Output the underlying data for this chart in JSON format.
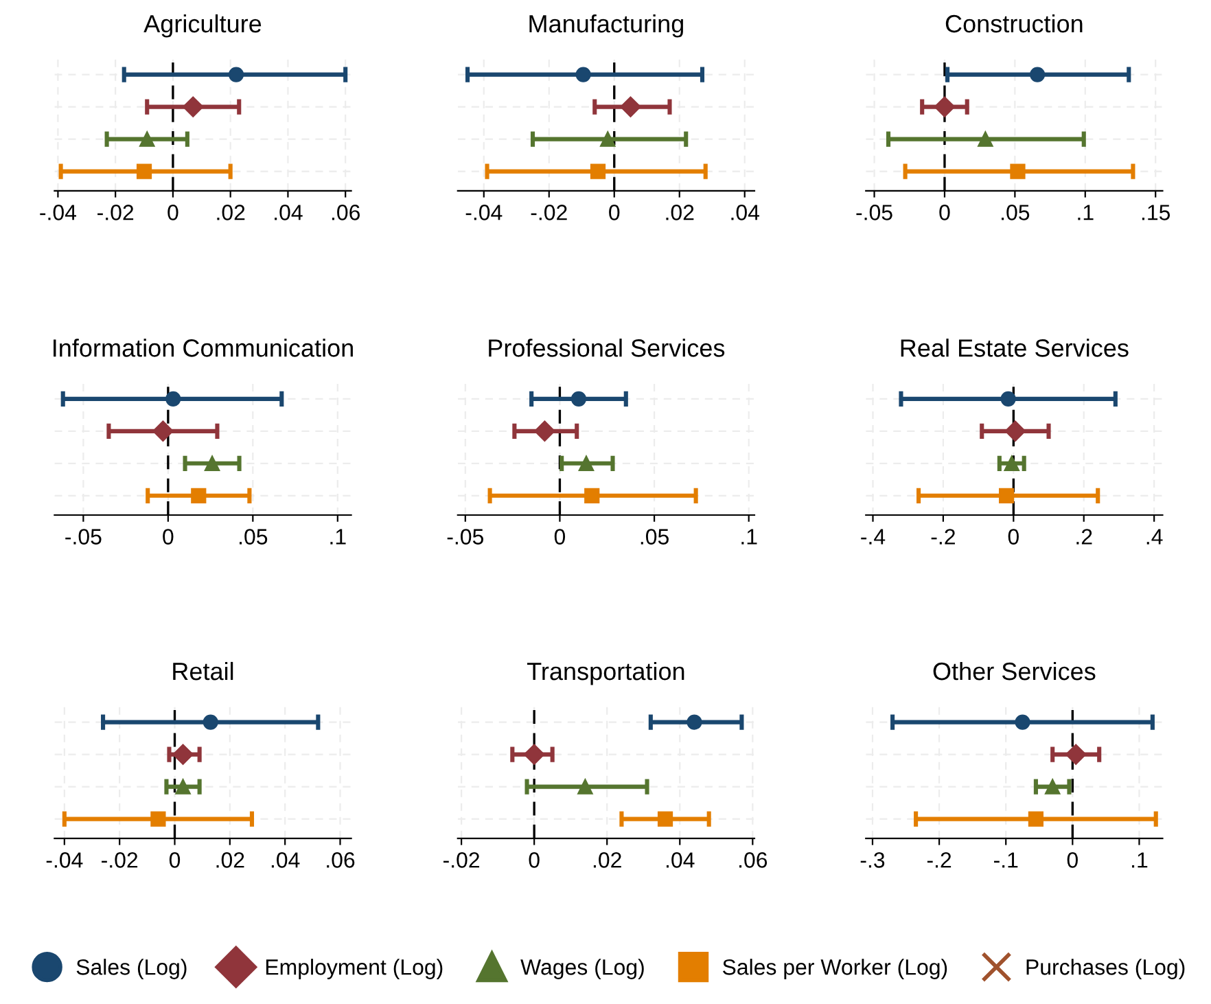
{
  "chart_data": [
    {
      "type": "scatter",
      "orientation": "horizontal",
      "title": "Agriculture",
      "categories": [
        null,
        null,
        null,
        null
      ],
      "grid": true,
      "tick_labels": "x",
      "legend": "bottom",
      "xlim": [
        -0.0412,
        0.062
      ],
      "xticks": [
        {
          "value": -0.04,
          "label": "-.04"
        },
        {
          "value": -0.02,
          "label": "-.02"
        },
        0,
        {
          "value": 0.02,
          "label": ".02"
        },
        {
          "value": 0.04,
          "label": ".04"
        },
        {
          "value": 0.06,
          "label": ".06"
        }
      ],
      "ref_lines": [
        {
          "axis": "x",
          "value": 0,
          "color": "#000000",
          "line_style": "dashed"
        }
      ],
      "series": [
        {
          "name": "Sales (Log)",
          "color": "#1a476f",
          "marker": "circle",
          "values": [
            0.022,
            null,
            null,
            null
          ],
          "errors": [
            [
              -0.017,
              0.06
            ],
            null,
            null,
            null
          ]
        },
        {
          "name": "Employment (Log)",
          "color": "#90353b",
          "marker": "diamond",
          "values": [
            null,
            0.007,
            null,
            null
          ],
          "errors": [
            null,
            [
              -0.009,
              0.023
            ],
            null,
            null
          ]
        },
        {
          "name": "Wages (Log)",
          "color": "#55752f",
          "marker": "triangle",
          "values": [
            null,
            null,
            -0.009,
            null
          ],
          "errors": [
            null,
            null,
            [
              -0.023,
              0.005
            ],
            null
          ]
        },
        {
          "name": "Sales per Worker (Log)",
          "color": "#e37e00",
          "marker": "square",
          "values": [
            null,
            null,
            null,
            -0.01
          ],
          "errors": [
            null,
            null,
            null,
            [
              -0.039,
              0.02
            ]
          ]
        },
        {
          "name": "Purchases (Log)",
          "color": "#a0522d",
          "marker": "cross",
          "values": [
            null,
            null,
            null,
            null
          ]
        }
      ]
    },
    {
      "type": "scatter",
      "orientation": "horizontal",
      "title": "Manufacturing",
      "categories": [
        null,
        null,
        null,
        null
      ],
      "grid": true,
      "tick_labels": "x",
      "xlim": [
        -0.048,
        0.043
      ],
      "xticks": [
        {
          "value": -0.04,
          "label": "-.04"
        },
        {
          "value": -0.02,
          "label": "-.02"
        },
        0,
        {
          "value": 0.02,
          "label": ".02"
        },
        {
          "value": 0.04,
          "label": ".04"
        }
      ],
      "ref_lines": [
        {
          "axis": "x",
          "value": 0,
          "color": "#000000",
          "line_style": "dashed"
        }
      ],
      "series": [
        {
          "color": "#1a476f",
          "marker": "circle",
          "values": [
            -0.0095,
            null,
            null,
            null
          ],
          "errors": [
            [
              -0.045,
              0.027
            ],
            null,
            null,
            null
          ]
        },
        {
          "color": "#90353b",
          "marker": "diamond",
          "values": [
            null,
            0.005,
            null,
            null
          ],
          "errors": [
            null,
            [
              -0.006,
              0.017
            ],
            null,
            null
          ]
        },
        {
          "color": "#55752f",
          "marker": "triangle",
          "values": [
            null,
            null,
            -0.002,
            null
          ],
          "errors": [
            null,
            null,
            [
              -0.025,
              0.022
            ],
            null
          ]
        },
        {
          "color": "#e37e00",
          "marker": "square",
          "values": [
            null,
            null,
            null,
            -0.005
          ],
          "errors": [
            null,
            null,
            null,
            [
              -0.039,
              0.028
            ]
          ]
        }
      ]
    },
    {
      "type": "scatter",
      "orientation": "horizontal",
      "title": "Construction",
      "categories": [
        null,
        null,
        null,
        null
      ],
      "grid": true,
      "tick_labels": "x",
      "xlim": [
        -0.056,
        0.155
      ],
      "xticks": [
        {
          "value": -0.05,
          "label": "-.05"
        },
        0,
        {
          "value": 0.05,
          "label": ".05"
        },
        {
          "value": 0.1,
          "label": ".1"
        },
        {
          "value": 0.15,
          "label": ".15"
        }
      ],
      "ref_lines": [
        {
          "axis": "x",
          "value": 0,
          "color": "#000000",
          "line_style": "dashed"
        }
      ],
      "series": [
        {
          "color": "#1a476f",
          "marker": "circle",
          "values": [
            0.066,
            null,
            null,
            null
          ],
          "errors": [
            [
              0.002,
              0.131
            ],
            null,
            null,
            null
          ]
        },
        {
          "color": "#90353b",
          "marker": "diamond",
          "values": [
            null,
            0.0,
            null,
            null
          ],
          "errors": [
            null,
            [
              -0.016,
              0.016
            ],
            null,
            null
          ]
        },
        {
          "color": "#55752f",
          "marker": "triangle",
          "values": [
            null,
            null,
            0.029,
            null
          ],
          "errors": [
            null,
            null,
            [
              -0.04,
              0.099
            ],
            null
          ]
        },
        {
          "color": "#e37e00",
          "marker": "square",
          "values": [
            null,
            null,
            null,
            0.052
          ],
          "errors": [
            null,
            null,
            null,
            [
              -0.028,
              0.134
            ]
          ]
        }
      ]
    },
    {
      "type": "scatter",
      "orientation": "horizontal",
      "title": "Information Communication",
      "categories": [
        null,
        null,
        null,
        null
      ],
      "grid": true,
      "tick_labels": "x",
      "xlim": [
        -0.067,
        0.108
      ],
      "xticks": [
        {
          "value": -0.05,
          "label": "-.05"
        },
        0,
        {
          "value": 0.05,
          "label": ".05"
        },
        {
          "value": 0.1,
          "label": ".1"
        }
      ],
      "ref_lines": [
        {
          "axis": "x",
          "value": 0,
          "color": "#000000",
          "line_style": "dashed"
        }
      ],
      "series": [
        {
          "color": "#1a476f",
          "marker": "circle",
          "values": [
            0.003,
            null,
            null,
            null
          ],
          "errors": [
            [
              -0.062,
              0.067
            ],
            null,
            null,
            null
          ]
        },
        {
          "color": "#90353b",
          "marker": "diamond",
          "values": [
            null,
            -0.003,
            null,
            null
          ],
          "errors": [
            null,
            [
              -0.035,
              0.029
            ],
            null,
            null
          ]
        },
        {
          "color": "#55752f",
          "marker": "triangle",
          "values": [
            null,
            null,
            0.026,
            null
          ],
          "errors": [
            null,
            null,
            [
              0.01,
              0.042
            ],
            null
          ]
        },
        {
          "color": "#e37e00",
          "marker": "square",
          "values": [
            null,
            null,
            null,
            0.018
          ],
          "errors": [
            null,
            null,
            null,
            [
              -0.012,
              0.048
            ]
          ]
        }
      ]
    },
    {
      "type": "scatter",
      "orientation": "horizontal",
      "title": "Professional Services",
      "categories": [
        null,
        null,
        null,
        null
      ],
      "grid": true,
      "tick_labels": "x",
      "xlim": [
        -0.054,
        0.103
      ],
      "xticks": [
        {
          "value": -0.05,
          "label": "-.05"
        },
        0,
        {
          "value": 0.05,
          "label": ".05"
        },
        {
          "value": 0.1,
          "label": ".1"
        }
      ],
      "ref_lines": [
        {
          "axis": "x",
          "value": 0,
          "color": "#000000",
          "line_style": "dashed"
        }
      ],
      "series": [
        {
          "color": "#1a476f",
          "marker": "circle",
          "values": [
            0.01,
            null,
            null,
            null
          ],
          "errors": [
            [
              -0.015,
              0.035
            ],
            null,
            null,
            null
          ]
        },
        {
          "color": "#90353b",
          "marker": "diamond",
          "values": [
            null,
            -0.008,
            null,
            null
          ],
          "errors": [
            null,
            [
              -0.024,
              0.009
            ],
            null,
            null
          ]
        },
        {
          "color": "#55752f",
          "marker": "triangle",
          "values": [
            null,
            null,
            0.014,
            null
          ],
          "errors": [
            null,
            null,
            [
              0.001,
              0.028
            ],
            null
          ]
        },
        {
          "color": "#e37e00",
          "marker": "square",
          "values": [
            null,
            null,
            null,
            0.017
          ],
          "errors": [
            null,
            null,
            null,
            [
              -0.037,
              0.072
            ]
          ]
        }
      ]
    },
    {
      "type": "scatter",
      "orientation": "horizontal",
      "title": "Real Estate Services",
      "categories": [
        null,
        null,
        null,
        null
      ],
      "grid": true,
      "tick_labels": "x",
      "xlim": [
        -0.42,
        0.424
      ],
      "xticks": [
        {
          "value": -0.4,
          "label": "-.4"
        },
        {
          "value": -0.2,
          "label": "-.2"
        },
        0,
        {
          "value": 0.2,
          "label": ".2"
        },
        {
          "value": 0.4,
          "label": ".4"
        }
      ],
      "ref_lines": [
        {
          "axis": "x",
          "value": 0,
          "color": "#000000",
          "line_style": "dashed"
        }
      ],
      "series": [
        {
          "color": "#1a476f",
          "marker": "circle",
          "values": [
            -0.015,
            null,
            null,
            null
          ],
          "errors": [
            [
              -0.32,
              0.29
            ],
            null,
            null,
            null
          ]
        },
        {
          "color": "#90353b",
          "marker": "diamond",
          "values": [
            null,
            0.005,
            null,
            null
          ],
          "errors": [
            null,
            [
              -0.09,
              0.1
            ],
            null,
            null
          ]
        },
        {
          "color": "#55752f",
          "marker": "triangle",
          "values": [
            null,
            null,
            -0.005,
            null
          ],
          "errors": [
            null,
            null,
            [
              -0.04,
              0.03
            ],
            null
          ]
        },
        {
          "color": "#e37e00",
          "marker": "square",
          "values": [
            null,
            null,
            null,
            -0.02
          ],
          "errors": [
            null,
            null,
            null,
            [
              -0.27,
              0.24
            ]
          ]
        }
      ]
    },
    {
      "type": "scatter",
      "orientation": "horizontal",
      "title": "Retail",
      "categories": [
        null,
        null,
        null,
        null
      ],
      "grid": true,
      "tick_labels": "x",
      "xlim": [
        -0.0436,
        0.064
      ],
      "xticks": [
        {
          "value": -0.04,
          "label": "-.04"
        },
        {
          "value": -0.02,
          "label": "-.02"
        },
        0,
        {
          "value": 0.02,
          "label": ".02"
        },
        {
          "value": 0.04,
          "label": ".04"
        },
        {
          "value": 0.06,
          "label": ".06"
        }
      ],
      "ref_lines": [
        {
          "axis": "x",
          "value": 0,
          "color": "#000000",
          "line_style": "dashed"
        }
      ],
      "series": [
        {
          "color": "#1a476f",
          "marker": "circle",
          "values": [
            0.013,
            null,
            null,
            null
          ],
          "errors": [
            [
              -0.026,
              0.052
            ],
            null,
            null,
            null
          ]
        },
        {
          "color": "#90353b",
          "marker": "diamond",
          "values": [
            null,
            0.003,
            null,
            null
          ],
          "errors": [
            null,
            [
              -0.002,
              0.009
            ],
            null,
            null
          ]
        },
        {
          "color": "#55752f",
          "marker": "triangle",
          "values": [
            null,
            null,
            0.003,
            null
          ],
          "errors": [
            null,
            null,
            [
              -0.003,
              0.009
            ],
            null
          ]
        },
        {
          "color": "#e37e00",
          "marker": "square",
          "values": [
            null,
            null,
            null,
            -0.006
          ],
          "errors": [
            null,
            null,
            null,
            [
              -0.04,
              0.028
            ]
          ]
        }
      ]
    },
    {
      "type": "scatter",
      "orientation": "horizontal",
      "title": "Transportation",
      "categories": [
        null,
        null,
        null,
        null
      ],
      "grid": true,
      "tick_labels": "x",
      "xlim": [
        -0.021,
        0.0605
      ],
      "xticks": [
        {
          "value": -0.02,
          "label": "-.02"
        },
        0,
        {
          "value": 0.02,
          "label": ".02"
        },
        {
          "value": 0.04,
          "label": ".04"
        },
        {
          "value": 0.06,
          "label": ".06"
        }
      ],
      "ref_lines": [
        {
          "axis": "x",
          "value": 0,
          "color": "#000000",
          "line_style": "dashed"
        }
      ],
      "series": [
        {
          "color": "#1a476f",
          "marker": "circle",
          "values": [
            0.044,
            null,
            null,
            null
          ],
          "errors": [
            [
              0.032,
              0.057
            ],
            null,
            null,
            null
          ]
        },
        {
          "color": "#90353b",
          "marker": "diamond",
          "values": [
            null,
            0.0,
            null,
            null
          ],
          "errors": [
            null,
            [
              -0.006,
              0.005
            ],
            null,
            null
          ]
        },
        {
          "color": "#55752f",
          "marker": "triangle",
          "values": [
            null,
            null,
            0.014,
            null
          ],
          "errors": [
            null,
            null,
            [
              -0.002,
              0.031
            ],
            null
          ]
        },
        {
          "color": "#e37e00",
          "marker": "square",
          "values": [
            null,
            null,
            null,
            0.036
          ],
          "errors": [
            null,
            null,
            null,
            [
              0.024,
              0.048
            ]
          ]
        }
      ]
    },
    {
      "type": "scatter",
      "orientation": "horizontal",
      "title": "Other Services",
      "categories": [
        null,
        null,
        null,
        null
      ],
      "grid": true,
      "tick_labels": "x",
      "xlim": [
        -0.31,
        0.135
      ],
      "xticks": [
        {
          "value": -0.3,
          "label": "-.3"
        },
        {
          "value": -0.2,
          "label": "-.2"
        },
        {
          "value": -0.1,
          "label": "-.1"
        },
        0,
        {
          "value": 0.1,
          "label": ".1"
        }
      ],
      "ref_lines": [
        {
          "axis": "x",
          "value": 0,
          "color": "#000000",
          "line_style": "dashed"
        }
      ],
      "series": [
        {
          "color": "#1a476f",
          "marker": "circle",
          "values": [
            -0.075,
            null,
            null,
            null
          ],
          "errors": [
            [
              -0.27,
              0.12
            ],
            null,
            null,
            null
          ]
        },
        {
          "color": "#90353b",
          "marker": "diamond",
          "values": [
            null,
            0.005,
            null,
            null
          ],
          "errors": [
            null,
            [
              -0.03,
              0.04
            ],
            null,
            null
          ]
        },
        {
          "color": "#55752f",
          "marker": "triangle",
          "values": [
            null,
            null,
            -0.03,
            null
          ],
          "errors": [
            null,
            null,
            [
              -0.055,
              -0.005
            ],
            null
          ]
        },
        {
          "color": "#e37e00",
          "marker": "square",
          "values": [
            null,
            null,
            null,
            -0.055
          ],
          "errors": [
            null,
            null,
            null,
            [
              -0.235,
              0.125
            ]
          ]
        }
      ]
    }
  ]
}
